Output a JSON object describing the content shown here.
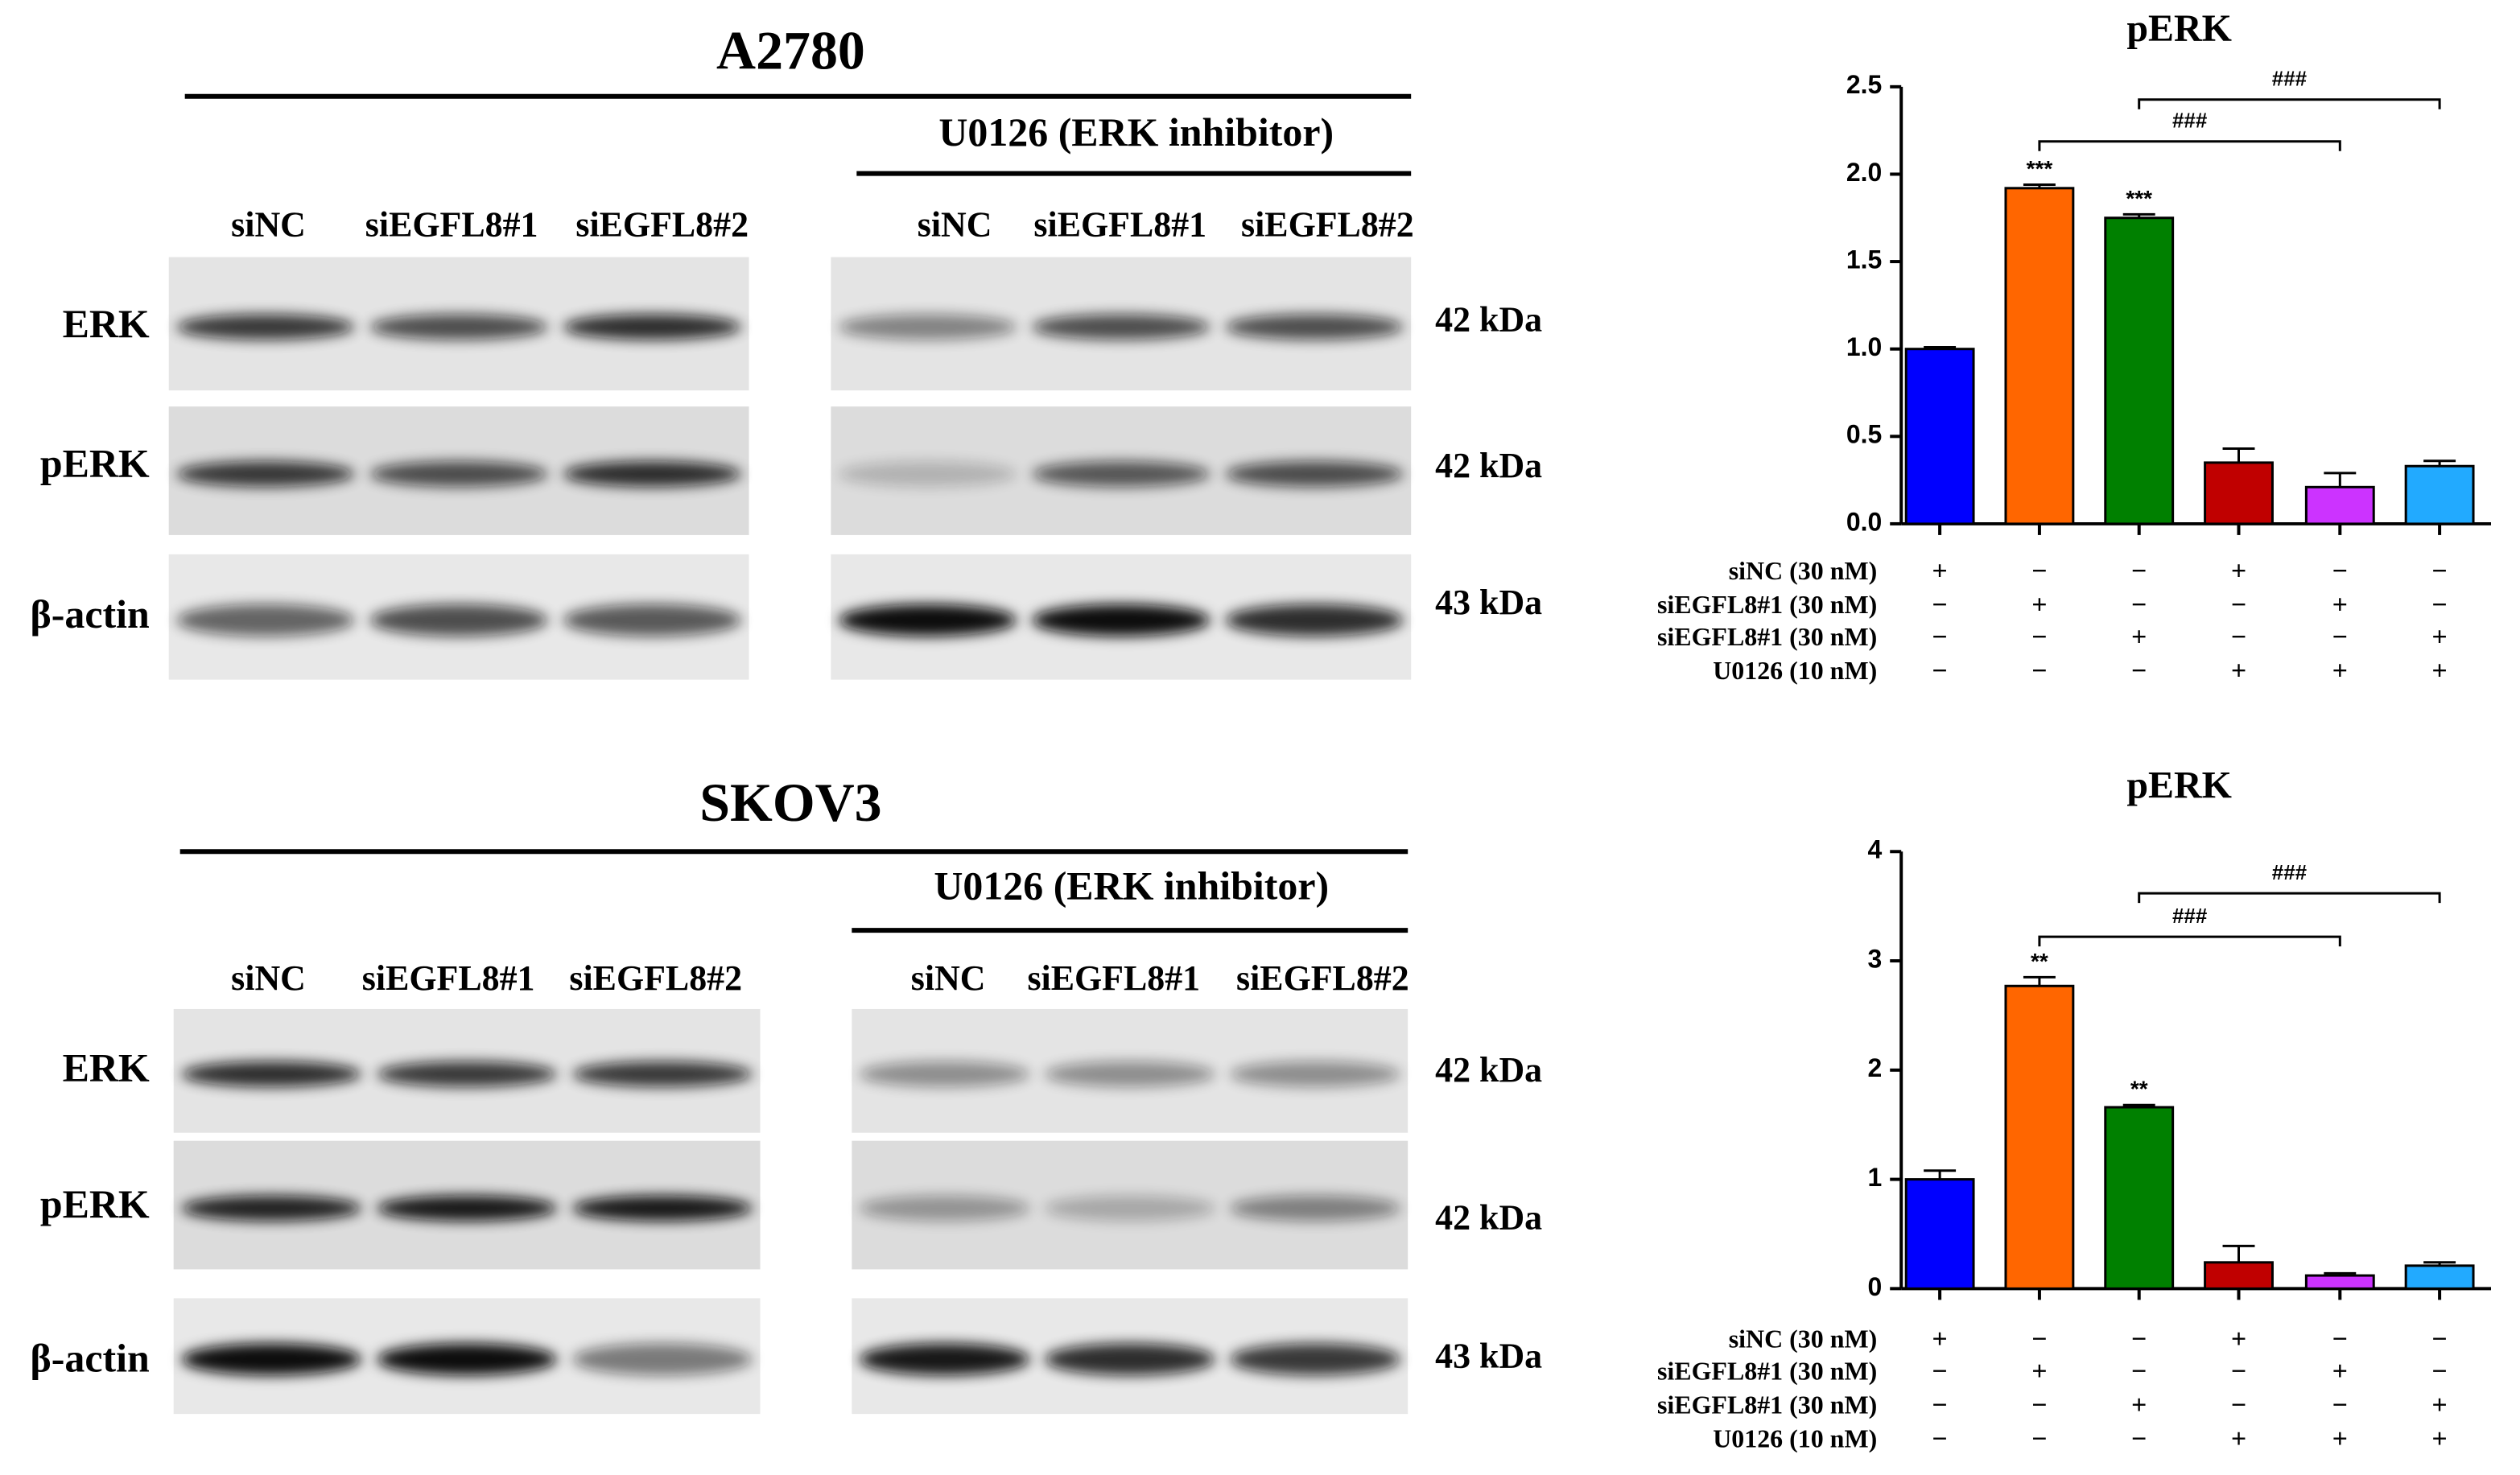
{
  "blots": [
    {
      "title": "A2780",
      "inhibitor": "U0126 (ERK inhibitor)",
      "lanes": [
        "siNC",
        "siEGFL8#1",
        "siEGFL8#2"
      ],
      "rows": [
        {
          "label": "ERK",
          "kda": "42 kDa"
        },
        {
          "label": "pERK",
          "kda": "42 kDa"
        },
        {
          "label": "β-actin",
          "kda": "43 kDa"
        }
      ]
    },
    {
      "title": "SKOV3",
      "inhibitor": "U0126 (ERK inhibitor)",
      "lanes": [
        "siNC",
        "siEGFL8#1",
        "siEGFL8#2"
      ],
      "rows": [
        {
          "label": "ERK",
          "kda": "42 kDa"
        },
        {
          "label": "pERK",
          "kda": "42 kDa"
        },
        {
          "label": "β-actin",
          "kda": "43 kDa"
        }
      ]
    }
  ],
  "chart_data": [
    {
      "type": "bar",
      "title": "pERK",
      "values": [
        1.0,
        1.92,
        1.75,
        0.35,
        0.21,
        0.33
      ],
      "errors": [
        0.01,
        0.02,
        0.02,
        0.08,
        0.08,
        0.03
      ],
      "colors": [
        "#0000ff",
        "#ff6600",
        "#008000",
        "#c00000",
        "#cc33ff",
        "#22aaff"
      ],
      "ylim": [
        0,
        2.5
      ],
      "yticks": [
        {
          "value": 0,
          "label": "0.0"
        },
        0.5,
        {
          "value": 1,
          "label": "1.0"
        },
        1.5,
        {
          "value": 2,
          "label": "2.0"
        },
        2.5
      ],
      "stars": [
        {
          "bar": 1,
          "label": "***"
        },
        {
          "bar": 2,
          "label": "***"
        }
      ],
      "brackets": [
        {
          "from": 1,
          "to": 4,
          "label": "###"
        },
        {
          "from": 2,
          "to": 5,
          "label": "###"
        }
      ],
      "conditions": [
        {
          "label": "siNC (30 nM)",
          "signs": [
            "+",
            "−",
            "−",
            "+",
            "−",
            "−"
          ]
        },
        {
          "label": "siEGFL8#1 (30 nM)",
          "signs": [
            "−",
            "+",
            "−",
            "−",
            "+",
            "−"
          ]
        },
        {
          "label": "siEGFL8#1 (30 nM)",
          "signs": [
            "−",
            "−",
            "+",
            "−",
            "−",
            "+"
          ]
        },
        {
          "label": "U0126 (10 nM)",
          "signs": [
            "−",
            "−",
            "−",
            "+",
            "+",
            "+"
          ]
        }
      ]
    },
    {
      "type": "bar",
      "title": "pERK",
      "values": [
        1.0,
        2.77,
        1.66,
        0.24,
        0.12,
        0.21
      ],
      "errors": [
        0.08,
        0.08,
        0.02,
        0.15,
        0.02,
        0.03
      ],
      "colors": [
        "#0000ff",
        "#ff6600",
        "#008000",
        "#c00000",
        "#cc33ff",
        "#22aaff"
      ],
      "ylim": [
        0,
        4
      ],
      "yticks": [
        0,
        1,
        2,
        3,
        4
      ],
      "stars": [
        {
          "bar": 1,
          "label": "**"
        },
        {
          "bar": 2,
          "label": "**"
        }
      ],
      "brackets": [
        {
          "from": 1,
          "to": 4,
          "label": "###"
        },
        {
          "from": 2,
          "to": 5,
          "label": "###"
        }
      ],
      "conditions": [
        {
          "label": "siNC (30 nM)",
          "signs": [
            "+",
            "−",
            "−",
            "+",
            "−",
            "−"
          ]
        },
        {
          "label": "siEGFL8#1 (30 nM)",
          "signs": [
            "−",
            "+",
            "−",
            "−",
            "+",
            "−"
          ]
        },
        {
          "label": "siEGFL8#1 (30 nM)",
          "signs": [
            "−",
            "−",
            "+",
            "−",
            "−",
            "+"
          ]
        },
        {
          "label": "U0126 (10 nM)",
          "signs": [
            "−",
            "−",
            "−",
            "+",
            "+",
            "+"
          ]
        }
      ]
    }
  ]
}
